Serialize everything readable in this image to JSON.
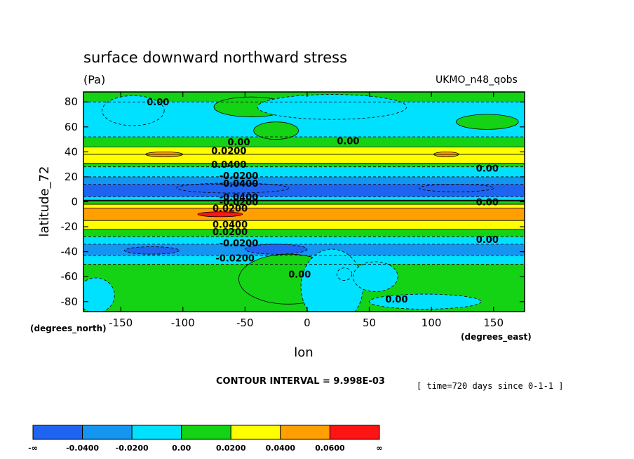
{
  "chart_data": {
    "type": "contour",
    "title": "surface downward northward stress",
    "units": "(Pa)",
    "dataset": "UKMO_n48_qobs",
    "xlabel": "lon",
    "ylabel": "latitude_72",
    "x_units": "(degrees_east)",
    "y_units": "(degrees_north)",
    "xlim": [
      -180,
      175
    ],
    "ylim": [
      -88,
      88
    ],
    "x_ticks": [
      -150,
      -100,
      -50,
      0,
      50,
      100,
      150
    ],
    "y_ticks": [
      80,
      60,
      40,
      20,
      0,
      -20,
      -40,
      -60,
      -80
    ],
    "contour_interval": "CONTOUR INTERVAL = 9.998E-03",
    "time_label": "[ time=720 days since 0-1-1 ]",
    "zonal_bands": [
      {
        "lat_from": 88,
        "lat_to": 80,
        "value": 0.005
      },
      {
        "lat_from": 80,
        "lat_to": 52,
        "value": -0.005
      },
      {
        "lat_from": 52,
        "lat_to": 44,
        "value": 0.01
      },
      {
        "lat_from": 44,
        "lat_to": 38,
        "value": 0.025
      },
      {
        "lat_from": 38,
        "lat_to": 31,
        "value": 0.03
      },
      {
        "lat_from": 31,
        "lat_to": 28,
        "value": 0.01
      },
      {
        "lat_from": 28,
        "lat_to": 20,
        "value": -0.015
      },
      {
        "lat_from": 20,
        "lat_to": 14,
        "value": -0.03
      },
      {
        "lat_from": 14,
        "lat_to": 4,
        "value": -0.045
      },
      {
        "lat_from": 4,
        "lat_to": 1,
        "value": -0.015
      },
      {
        "lat_from": 1,
        "lat_to": -2,
        "value": 0.01
      },
      {
        "lat_from": -2,
        "lat_to": -5,
        "value": 0.03
      },
      {
        "lat_from": -5,
        "lat_to": -15,
        "value": 0.045
      },
      {
        "lat_from": -15,
        "lat_to": -22,
        "value": 0.03
      },
      {
        "lat_from": -22,
        "lat_to": -28,
        "value": 0.015
      },
      {
        "lat_from": -28,
        "lat_to": -34,
        "value": -0.005
      },
      {
        "lat_from": -34,
        "lat_to": -43,
        "value": -0.03
      },
      {
        "lat_from": -43,
        "lat_to": -50,
        "value": -0.015
      },
      {
        "lat_from": -50,
        "lat_to": -88,
        "value": 0.005
      }
    ],
    "anomalies": [
      {
        "lon": -140,
        "lat": 73,
        "rlon": 25,
        "rlat": 12,
        "value": -0.005
      },
      {
        "lon": -45,
        "lat": 76,
        "rlon": 30,
        "rlat": 8,
        "value": 0.005
      },
      {
        "lon": -25,
        "lat": 57,
        "rlon": 18,
        "rlat": 7,
        "value": 0.005
      },
      {
        "lon": 20,
        "lat": 76,
        "rlon": 60,
        "rlat": 10,
        "value": -0.005
      },
      {
        "lon": 145,
        "lat": 64,
        "rlon": 25,
        "rlat": 6,
        "value": 0.005
      },
      {
        "lon": -115,
        "lat": 38,
        "rlon": 15,
        "rlat": 2,
        "value": 0.045
      },
      {
        "lon": 112,
        "lat": 38,
        "rlon": 10,
        "rlat": 2,
        "value": 0.045
      },
      {
        "lon": -60,
        "lat": 11,
        "rlon": 45,
        "rlat": 4,
        "value": -0.05
      },
      {
        "lon": 120,
        "lat": 11,
        "rlon": 30,
        "rlat": 3,
        "value": -0.05
      },
      {
        "lon": -70,
        "lat": -10,
        "rlon": 18,
        "rlat": 2,
        "value": 0.065
      },
      {
        "lon": -25,
        "lat": -38,
        "rlon": 25,
        "rlat": 4,
        "value": -0.045
      },
      {
        "lon": -125,
        "lat": -39,
        "rlon": 22,
        "rlat": 3,
        "value": -0.045
      },
      {
        "lon": -15,
        "lat": -62,
        "rlon": 40,
        "rlat": 20,
        "value": 0.005
      },
      {
        "lon": 20,
        "lat": -68,
        "rlon": 25,
        "rlat": 30,
        "value": -0.005
      },
      {
        "lon": 55,
        "lat": -60,
        "rlon": 18,
        "rlat": 12,
        "value": -0.005
      },
      {
        "lon": 30,
        "lat": -58,
        "rlon": 6,
        "rlat": 5,
        "value": -0.015
      },
      {
        "lon": -170,
        "lat": -75,
        "rlon": 15,
        "rlat": 14,
        "value": -0.005
      },
      {
        "lon": 95,
        "lat": -80,
        "rlon": 45,
        "rlat": 6,
        "value": -0.005
      }
    ],
    "contour_labels": [
      {
        "text": "0.00",
        "lon": -120,
        "lat": 80
      },
      {
        "text": "0.00",
        "lon": -55,
        "lat": 48
      },
      {
        "text": "0.00",
        "lon": 33,
        "lat": 49
      },
      {
        "text": "0.0200",
        "lon": -63,
        "lat": 41
      },
      {
        "text": "0.0400",
        "lon": -63,
        "lat": 30
      },
      {
        "text": "-0.0200",
        "lon": -55,
        "lat": 21
      },
      {
        "text": "-0.0400",
        "lon": -55,
        "lat": 15
      },
      {
        "text": "-0.0400",
        "lon": -55,
        "lat": 4
      },
      {
        "text": "-0.0200",
        "lon": -55,
        "lat": 0
      },
      {
        "text": "0.0200",
        "lon": -62,
        "lat": -5
      },
      {
        "text": "0.0400",
        "lon": -62,
        "lat": -18
      },
      {
        "text": "0.0200",
        "lon": -62,
        "lat": -24
      },
      {
        "text": "-0.0200",
        "lon": -55,
        "lat": -33
      },
      {
        "text": "-0.0200",
        "lon": -58,
        "lat": -45
      },
      {
        "text": "0.00",
        "lon": 145,
        "lat": 27
      },
      {
        "text": "0.00",
        "lon": 145,
        "lat": 0
      },
      {
        "text": "0.00",
        "lon": 145,
        "lat": -30
      },
      {
        "text": "0.00",
        "lon": -6,
        "lat": -58
      },
      {
        "text": "0.00",
        "lon": 72,
        "lat": -78
      }
    ],
    "colorbar": {
      "colors": [
        "#1e64f0",
        "#1496f0",
        "#00e1ff",
        "#14d214",
        "#ffff00",
        "#ffa000",
        "#ff1414"
      ],
      "labels": [
        "-∞",
        "-0.0400",
        "-0.0200",
        "0.00",
        "0.0200",
        "0.0400",
        "0.0600",
        "∞"
      ]
    }
  }
}
